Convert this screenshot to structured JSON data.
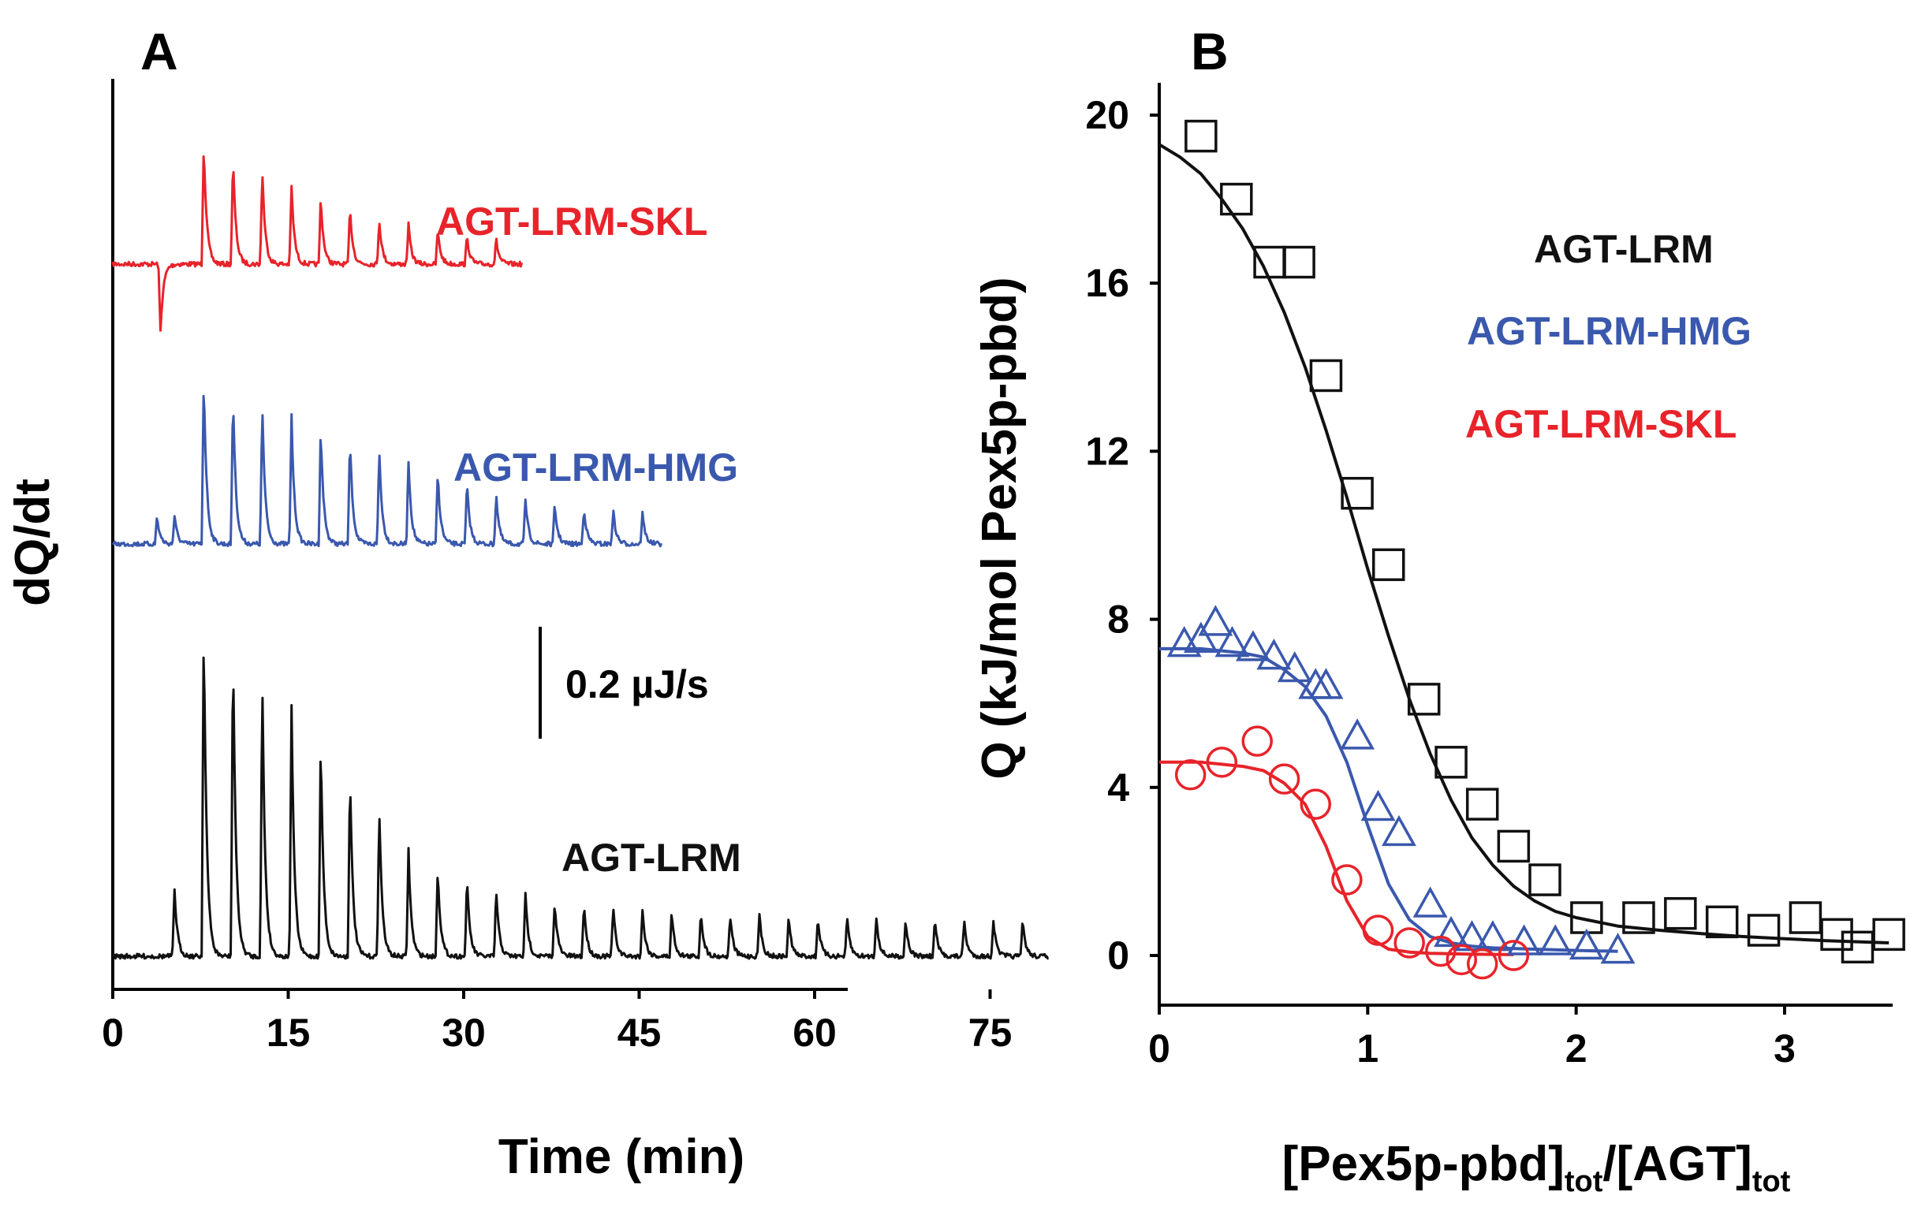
{
  "chart_data": [
    {
      "panel": "A",
      "type": "line",
      "title": "",
      "xlabel": "Time (min)",
      "ylabel": "dQ/dt",
      "xlim": [
        0,
        80
      ],
      "xticks": [
        0,
        15,
        30,
        45,
        60,
        75
      ],
      "scale_bar_label": "0.2 µJ/s",
      "scale_bar_value": 0.2,
      "scale_bar_unit": "µJ/s",
      "series": [
        {
          "name": "AGT-LRM-SKL",
          "color": "#e8232a",
          "duration_min": 35,
          "injection_times_min": [
            4,
            7.7,
            10.2,
            12.7,
            15.2,
            17.7,
            20.2,
            22.7,
            25.2,
            27.7,
            30.2,
            32.7
          ],
          "peak_heights": [
            -0.12,
            0.22,
            0.19,
            0.17,
            0.14,
            0.12,
            0.1,
            0.08,
            0.07,
            0.06,
            0.05,
            0.045
          ]
        },
        {
          "name": "AGT-LRM-HMG",
          "color": "#3a58ad",
          "duration_min": 47,
          "injection_times_min": [
            3.7,
            5.2,
            7.7,
            10.2,
            12.7,
            15.2,
            17.7,
            20.2,
            22.7,
            25.2,
            27.7,
            30.2,
            32.7,
            35.2,
            37.7,
            40.2,
            42.7,
            45.2
          ],
          "peak_heights": [
            0.05,
            0.05,
            0.3,
            0.27,
            0.25,
            0.23,
            0.21,
            0.19,
            0.17,
            0.15,
            0.13,
            0.11,
            0.09,
            0.08,
            0.07,
            0.065,
            0.06,
            0.055
          ]
        },
        {
          "name": "AGT-LRM",
          "color": "#111111",
          "duration_min": 80,
          "injection_times_min": [
            5.2,
            7.7,
            10.2,
            12.7,
            15.2,
            17.7,
            20.2,
            22.7,
            25.2,
            27.7,
            30.2,
            32.7,
            35.2,
            37.7,
            40.2,
            42.7,
            45.2,
            47.7,
            50.2,
            52.7,
            55.2,
            57.7,
            60.2,
            62.7,
            65.2,
            67.7,
            70.2,
            72.7,
            75.2,
            77.7
          ],
          "peak_heights": [
            0.12,
            0.6,
            0.56,
            0.5,
            0.45,
            0.39,
            0.33,
            0.27,
            0.19,
            0.16,
            0.14,
            0.12,
            0.11,
            0.1,
            0.095,
            0.09,
            0.085,
            0.08,
            0.08,
            0.075,
            0.075,
            0.07,
            0.07,
            0.07,
            0.07,
            0.065,
            0.065,
            0.065,
            0.065,
            0.065
          ]
        }
      ]
    },
    {
      "panel": "B",
      "type": "scatter",
      "title": "",
      "xlabel": "[Pex5p-pbd]",
      "xlabel_sub1": "tot",
      "xlabel_mid": "/[AGT]",
      "xlabel_sub2": "tot",
      "ylabel": "Q (kJ/mol Pex5p-pbd)",
      "xlim": [
        0,
        3.5
      ],
      "ylim": [
        -2.2,
        21.5
      ],
      "xticks": [
        0,
        1,
        2,
        3
      ],
      "yticks": [
        0,
        4,
        8,
        12,
        16,
        20
      ],
      "series": [
        {
          "name": "AGT-LRM",
          "color": "#111111",
          "marker": "square",
          "x": [
            0.2,
            0.37,
            0.53,
            0.67,
            0.8,
            0.95,
            1.1,
            1.27,
            1.4,
            1.55,
            1.7,
            1.85,
            2.05,
            2.3,
            2.5,
            2.7,
            2.9,
            3.1,
            3.25,
            3.35,
            3.5
          ],
          "y": [
            19.5,
            18.0,
            16.5,
            16.5,
            13.8,
            11.0,
            9.3,
            6.1,
            4.6,
            3.6,
            2.6,
            1.8,
            0.9,
            0.9,
            1.0,
            0.8,
            0.6,
            0.9,
            0.5,
            0.2,
            0.5
          ],
          "fit_x": [
            0.0,
            0.1,
            0.2,
            0.3,
            0.4,
            0.5,
            0.6,
            0.7,
            0.8,
            0.9,
            1.0,
            1.1,
            1.2,
            1.3,
            1.4,
            1.5,
            1.6,
            1.7,
            1.8,
            1.9,
            2.0,
            2.2,
            2.4,
            2.6,
            2.8,
            3.0,
            3.2,
            3.5
          ],
          "fit_y": [
            19.3,
            19.0,
            18.6,
            18.0,
            17.3,
            16.4,
            15.3,
            14.0,
            12.5,
            10.9,
            9.2,
            7.6,
            6.1,
            4.8,
            3.7,
            2.8,
            2.15,
            1.65,
            1.3,
            1.05,
            0.9,
            0.7,
            0.6,
            0.52,
            0.45,
            0.4,
            0.35,
            0.3
          ]
        },
        {
          "name": "AGT-LRM-HMG",
          "color": "#3a58ad",
          "marker": "triangle",
          "x": [
            0.12,
            0.2,
            0.27,
            0.35,
            0.45,
            0.55,
            0.65,
            0.75,
            0.8,
            0.95,
            1.05,
            1.15,
            1.3,
            1.4,
            1.5,
            1.6,
            1.75,
            1.9,
            2.05,
            2.2
          ],
          "y": [
            7.4,
            7.5,
            7.9,
            7.4,
            7.3,
            7.1,
            6.8,
            6.4,
            6.4,
            5.2,
            3.5,
            2.9,
            1.2,
            0.5,
            0.4,
            0.4,
            0.3,
            0.3,
            0.2,
            0.1
          ],
          "fit_x": [
            0.0,
            0.2,
            0.4,
            0.5,
            0.6,
            0.7,
            0.8,
            0.9,
            1.0,
            1.1,
            1.2,
            1.3,
            1.4,
            1.5,
            1.6,
            1.8,
            2.0,
            2.2
          ],
          "fit_y": [
            7.3,
            7.3,
            7.2,
            7.1,
            6.8,
            6.4,
            5.7,
            4.6,
            3.1,
            1.7,
            0.85,
            0.45,
            0.3,
            0.22,
            0.18,
            0.15,
            0.12,
            0.1
          ]
        },
        {
          "name": "AGT-LRM-SKL",
          "color": "#e8232a",
          "marker": "circle",
          "x": [
            0.15,
            0.3,
            0.47,
            0.6,
            0.75,
            0.9,
            1.05,
            1.2,
            1.35,
            1.45,
            1.55,
            1.7
          ],
          "y": [
            4.3,
            4.6,
            5.1,
            4.2,
            3.6,
            1.8,
            0.6,
            0.3,
            0.1,
            -0.1,
            -0.2,
            0.0
          ],
          "fit_x": [
            0.0,
            0.2,
            0.4,
            0.5,
            0.6,
            0.7,
            0.8,
            0.9,
            1.0,
            1.1,
            1.2,
            1.3,
            1.5,
            1.7
          ],
          "fit_y": [
            4.6,
            4.6,
            4.5,
            4.4,
            4.1,
            3.6,
            2.6,
            1.3,
            0.45,
            0.15,
            0.08,
            0.05,
            0.03,
            0.02
          ]
        }
      ]
    }
  ]
}
